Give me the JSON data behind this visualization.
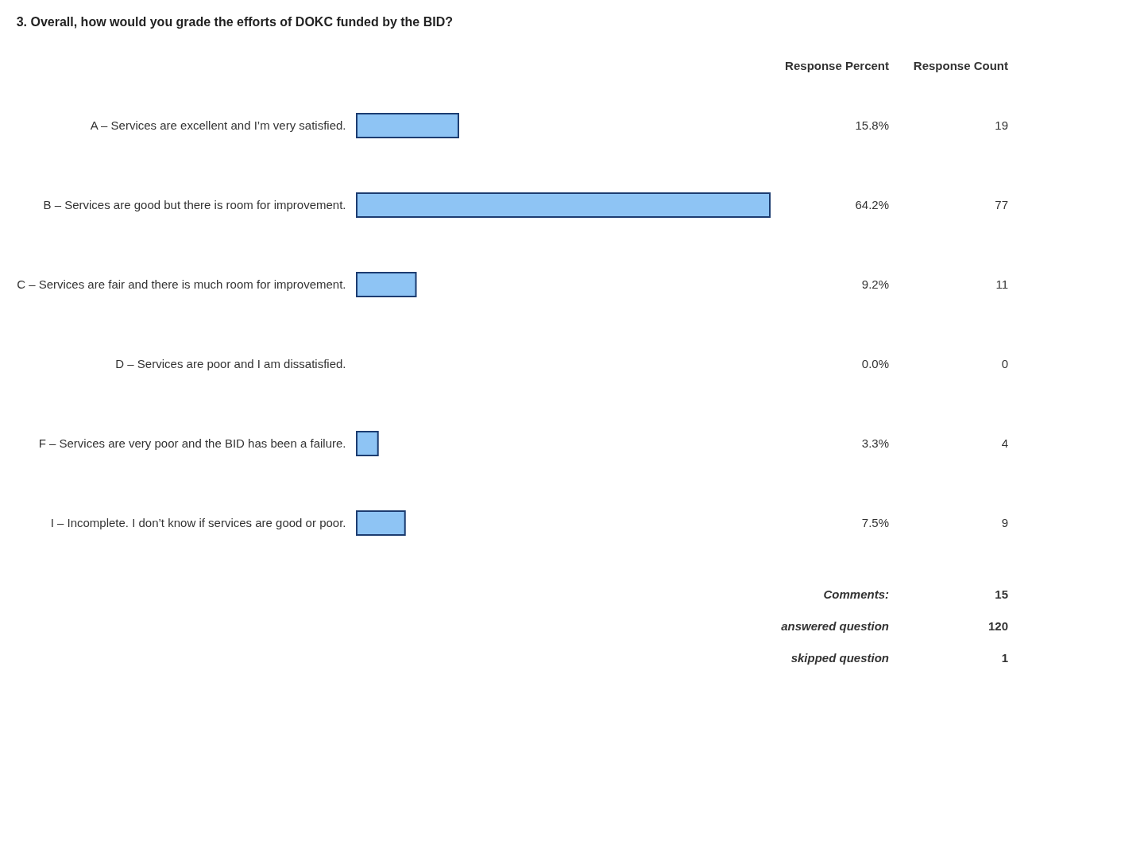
{
  "chart_data": {
    "type": "bar",
    "orientation": "horizontal",
    "title": "3. Overall, how would you grade the efforts of DOKC funded by the BID?",
    "categories": [
      "A – Services are excellent and I’m very satisfied.",
      "B – Services are good but there is room for improvement.",
      "C – Services are fair and there is much room for improvement.",
      "D – Services are poor and I am dissatisfied.",
      "F – Services are very poor and the BID has been a failure.",
      "I – Incomplete. I don’t know if services are good or poor."
    ],
    "values": [
      15.8,
      64.2,
      9.2,
      0.0,
      3.3,
      7.5
    ],
    "value_labels": [
      "15.8%",
      "64.2%",
      "9.2%",
      "0.0%",
      "3.3%",
      "7.5%"
    ],
    "color": "#8ec4f4",
    "tick_labels": "y",
    "annotations": [
      "Response Percent",
      "Response Count",
      "19",
      "77",
      "11",
      "0",
      "4",
      "9",
      "Comments:",
      "15",
      "answered question",
      "120",
      "skipped question",
      "1"
    ]
  }
}
